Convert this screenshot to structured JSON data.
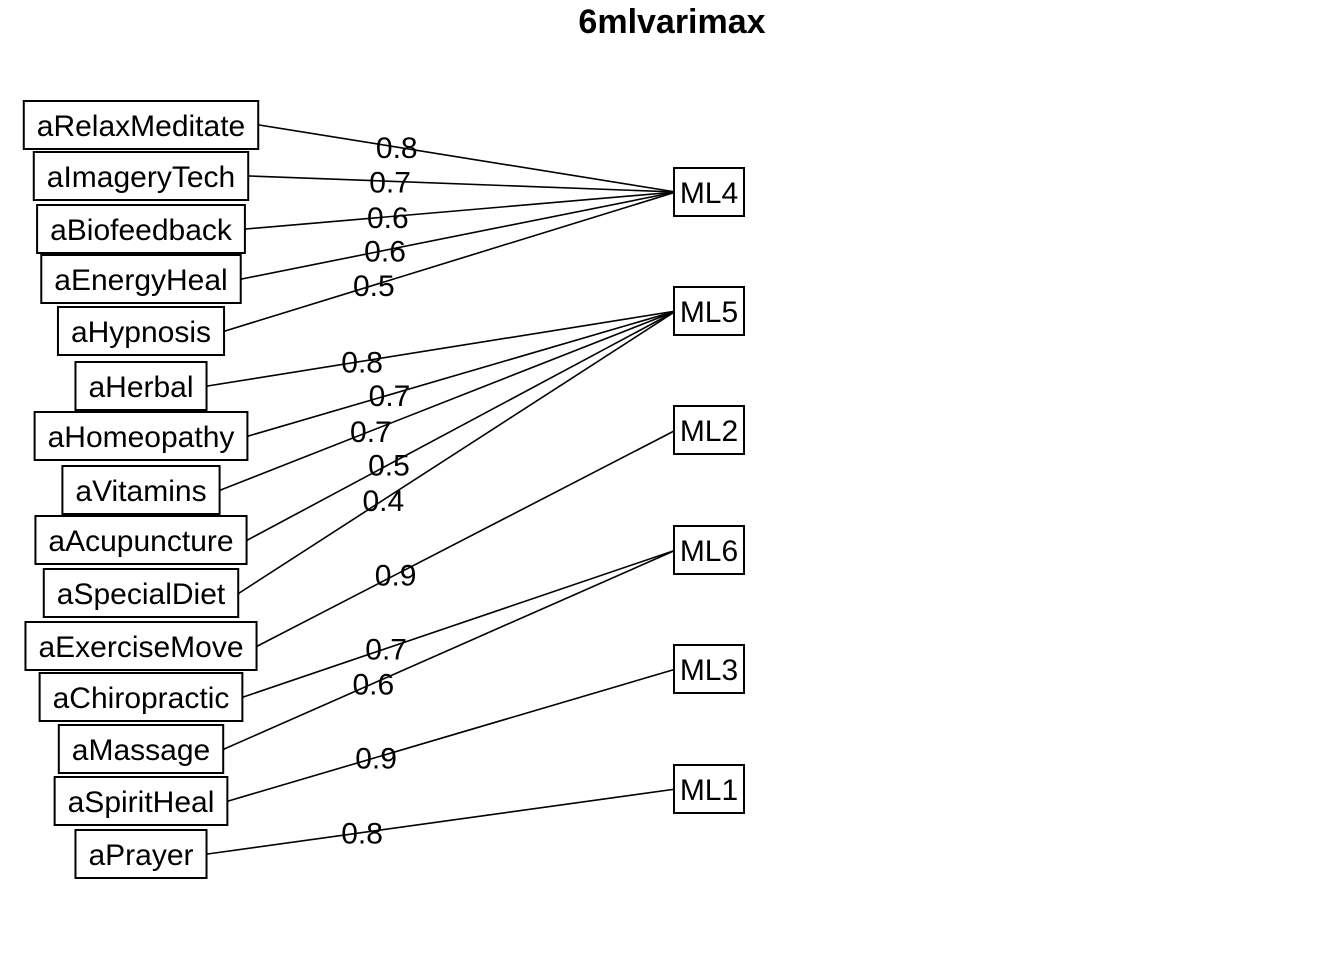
{
  "title": "6mlvarimax",
  "variables": [
    "aRelaxMeditate",
    "aImageryTech",
    "aBiofeedback",
    "aEnergyHeal",
    "aHypnosis",
    "aHerbal",
    "aHomeopathy",
    "aVitamins",
    "aAcupuncture",
    "aSpecialDiet",
    "aExerciseMove",
    "aChiropractic",
    "aMassage",
    "aSpiritHeal",
    "aPrayer"
  ],
  "factors": [
    "ML4",
    "ML5",
    "ML2",
    "ML6",
    "ML3",
    "ML1"
  ],
  "loadings": [
    {
      "factor": "ML4",
      "variable": "aRelaxMeditate",
      "value": "0.8"
    },
    {
      "factor": "ML4",
      "variable": "aImageryTech",
      "value": "0.7"
    },
    {
      "factor": "ML4",
      "variable": "aBiofeedback",
      "value": "0.6"
    },
    {
      "factor": "ML4",
      "variable": "aEnergyHeal",
      "value": "0.6"
    },
    {
      "factor": "ML4",
      "variable": "aHypnosis",
      "value": "0.5"
    },
    {
      "factor": "ML5",
      "variable": "aHerbal",
      "value": "0.8"
    },
    {
      "factor": "ML5",
      "variable": "aHomeopathy",
      "value": "0.7"
    },
    {
      "factor": "ML5",
      "variable": "aVitamins",
      "value": "0.7"
    },
    {
      "factor": "ML5",
      "variable": "aAcupuncture",
      "value": "0.5"
    },
    {
      "factor": "ML5",
      "variable": "aSpecialDiet",
      "value": "0.4"
    },
    {
      "factor": "ML2",
      "variable": "aExerciseMove",
      "value": "0.9"
    },
    {
      "factor": "ML6",
      "variable": "aChiropractic",
      "value": "0.7"
    },
    {
      "factor": "ML6",
      "variable": "aMassage",
      "value": "0.6"
    },
    {
      "factor": "ML3",
      "variable": "aSpiritHeal",
      "value": "0.9"
    },
    {
      "factor": "ML1",
      "variable": "aPrayer",
      "value": "0.8"
    }
  ]
}
